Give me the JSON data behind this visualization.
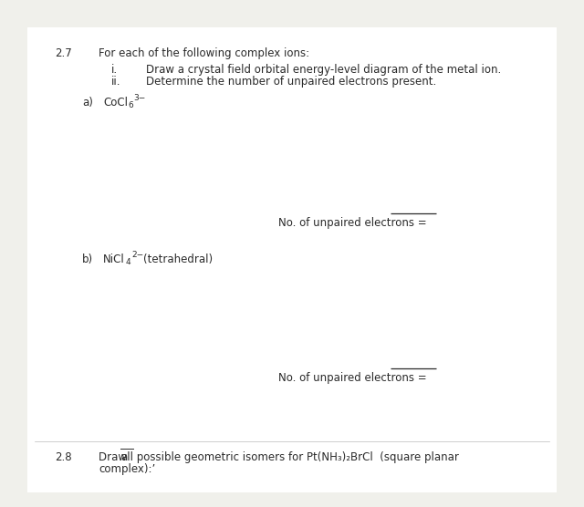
{
  "bg_color": "#ffffff",
  "page_bg": "#f0f0eb",
  "text_color": "#2a2a2a",
  "q27_num": "2.7",
  "q27_text": "For each of the following complex ions:",
  "sub_i_label": "i.",
  "sub_i_text": "Draw a crystal field orbital energy-level diagram of the metal ion.",
  "sub_ii_label": "ii.",
  "sub_ii_text": "Determine the number of unpaired electrons present.",
  "part_a_label": "a)",
  "part_a_main": "CoCl",
  "part_a_sub": "6",
  "part_a_sup": "3−",
  "unpaired_text": "No. of unpaired electrons = ",
  "part_b_label": "b)",
  "part_b_main": "NiCl",
  "part_b_sub": "4",
  "part_b_sup": "2−",
  "part_b_extra": "(tetrahedral)",
  "q28_num": "2.8",
  "q28_pre": "Draw ",
  "q28_ul": "all",
  "q28_post": " possible geometric isomers for Pt(NH₃)₂BrCl  (square planar",
  "q28_line2": "complex):’",
  "fs": 8.5,
  "fs_sub": 6.5
}
